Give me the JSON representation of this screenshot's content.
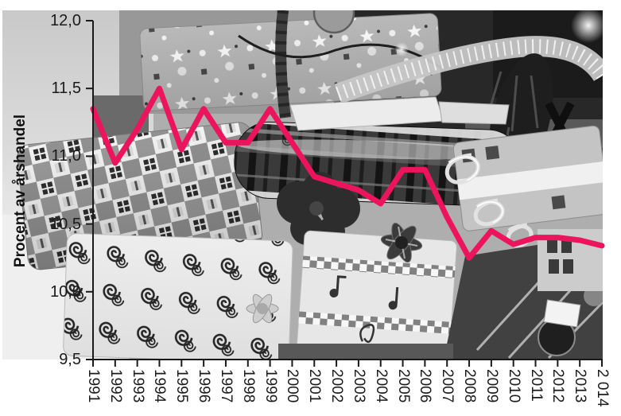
{
  "chart_data": {
    "type": "line",
    "title": "",
    "ylabel": "Procent av årshandel",
    "xlabel": "",
    "categories": [
      "1991",
      "1992",
      "1993",
      "1994",
      "1995",
      "1996",
      "1997",
      "1998",
      "1999",
      "2000",
      "2001",
      "2002",
      "2003",
      "2004",
      "2005",
      "2006",
      "2007",
      "2008",
      "2009",
      "2010",
      "2011",
      "2012",
      "2013",
      "2 014"
    ],
    "series": [
      {
        "name": "Procent av årshandel",
        "values": [
          11.35,
          10.95,
          11.2,
          11.5,
          11.05,
          11.35,
          11.1,
          11.1,
          11.35,
          11.1,
          10.85,
          10.8,
          10.75,
          10.65,
          10.9,
          10.9,
          10.55,
          10.25,
          10.45,
          10.35,
          10.4,
          10.4,
          10.38,
          10.34
        ]
      }
    ],
    "ylim": [
      9.5,
      12.0
    ],
    "y_ticks": [
      {
        "label": "12,0",
        "value": 12.0
      },
      {
        "label": "11,5",
        "value": 11.5
      },
      {
        "label": "11,0",
        "value": 11.0
      },
      {
        "label": "10,5",
        "value": 10.5
      },
      {
        "label": "10,0",
        "value": 10.0
      },
      {
        "label": "9,5",
        "value": 9.5
      }
    ],
    "grid": false,
    "legend": "none",
    "background": "black-and-white photo of wrapped Christmas presents under a tree"
  },
  "colors": {
    "line": "#ed145e",
    "axis": "#1a1a1a",
    "text": "#1a1a1a"
  }
}
